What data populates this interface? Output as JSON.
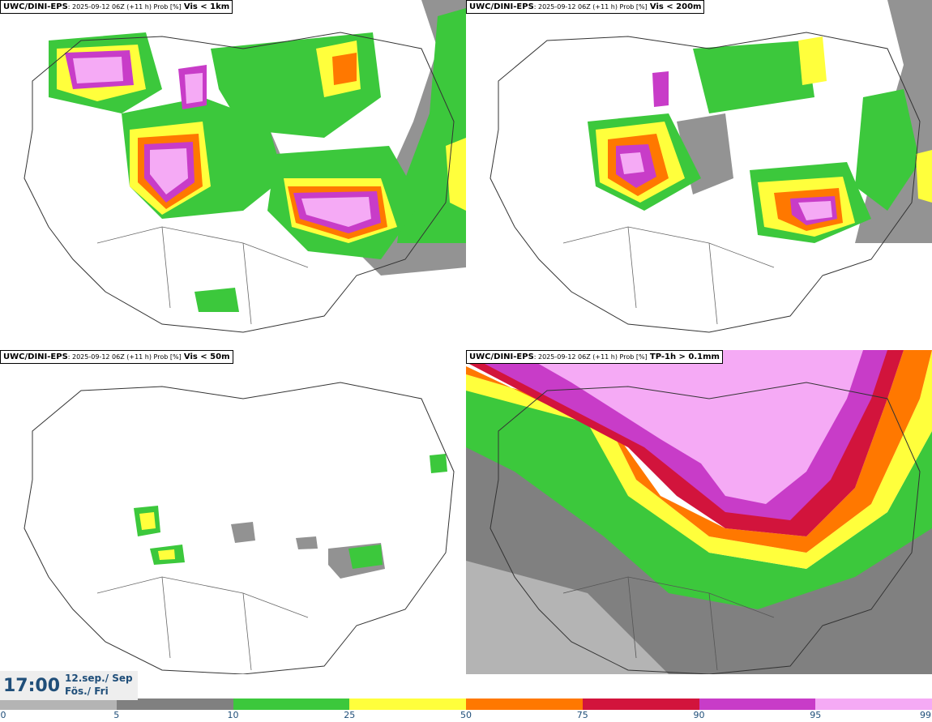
{
  "panels": [
    {
      "model": "UWC/DINI-EPS",
      "meta": ": 2025-09-12 06Z (+11 h) Prob [%]",
      "variable": "Vis < 1km"
    },
    {
      "model": "UWC/DINI-EPS",
      "meta": ": 2025-09-12 06Z (+11 h) Prob [%]",
      "variable": "Vis < 200m"
    },
    {
      "model": "UWC/DINI-EPS",
      "meta": ": 2025-09-12 06Z (+11 h) Prob [%]",
      "variable": "Vis < 50m"
    },
    {
      "model": "UWC/DINI-EPS",
      "meta": ": 2025-09-12 06Z (+11 h) Prob [%]",
      "variable": "TP-1h > 0.1mm"
    }
  ],
  "valid_time": {
    "time": "17:00",
    "date_line1": "12.sep./ Sep",
    "date_line2": "Fös./ Fri"
  },
  "colorbar": {
    "ticks": [
      "0",
      "5",
      "10",
      "25",
      "50",
      "75",
      "90",
      "95",
      "99"
    ],
    "colors": [
      "#ffffff",
      "#b4b4b4",
      "#808080",
      "#3cc83c",
      "#ffff3c",
      "#ff7800",
      "#d2143c",
      "#c83cc8",
      "#f5aaf5"
    ]
  }
}
